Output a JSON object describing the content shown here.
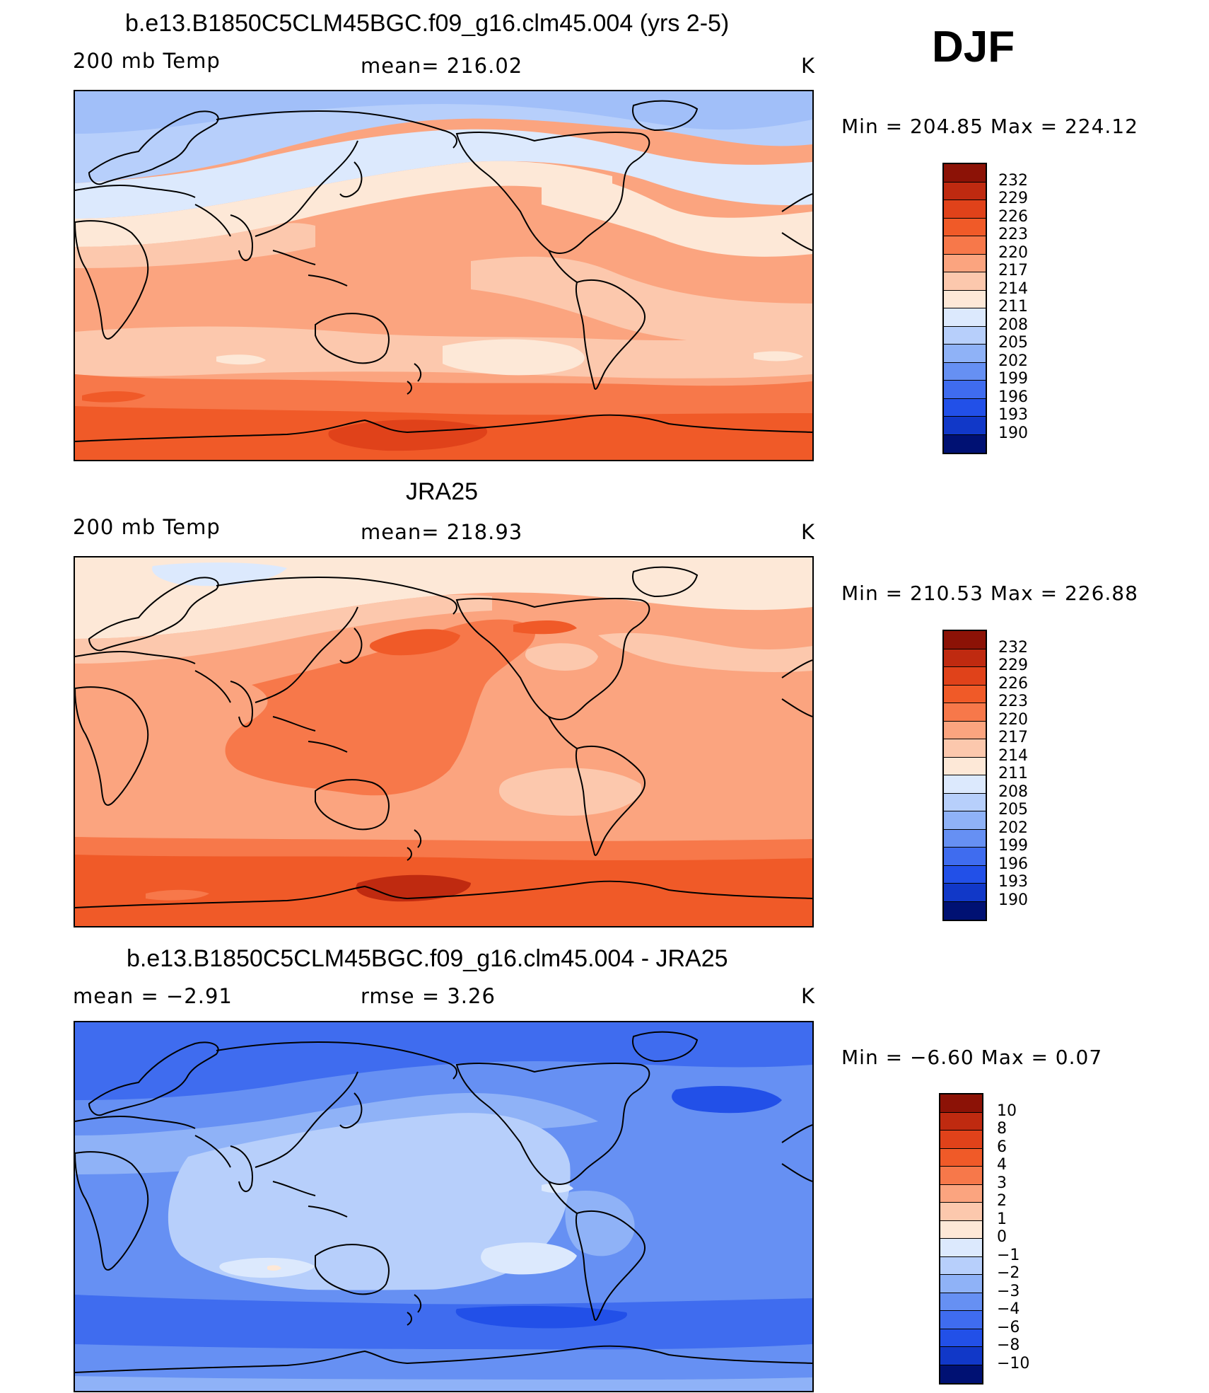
{
  "season": "DJF",
  "colors": {
    "warm": [
      "#fde8d7",
      "#fcc8ad",
      "#fba47f",
      "#f7784a",
      "#f05a28",
      "#e0421a",
      "#bf2a10",
      "#8c1206"
    ],
    "cool": [
      "#dce9fd",
      "#b7cffb",
      "#8fb2f7",
      "#6690f3",
      "#3f6cef",
      "#2250e8",
      "#1138c8",
      "#06209a",
      "#001173"
    ],
    "coast": "#000000"
  },
  "panels": [
    {
      "title": "b.e13.B1850C5CLM45BGC.f09_g16.clm45.004 (yrs 2-5)",
      "left_label": "200 mb Temp",
      "center_label": "mean= 216.02",
      "units": "K",
      "minmax": "Min = 204.85 Max = 224.12",
      "colorbar_labels": [
        "232",
        "229",
        "226",
        "223",
        "220",
        "217",
        "214",
        "211",
        "208",
        "205",
        "202",
        "199",
        "196",
        "193",
        "190"
      ],
      "colorbar_colors": [
        "#8c1206",
        "#bf2a10",
        "#e0421a",
        "#f05a28",
        "#f7784a",
        "#fba47f",
        "#fcc8ad",
        "#fde8d7",
        "#dce9fd",
        "#b7cffb",
        "#8fb2f7",
        "#6690f3",
        "#3f6cef",
        "#2250e8",
        "#1138c8",
        "#001173"
      ]
    },
    {
      "title": "JRA25",
      "left_label": "200 mb Temp",
      "center_label": "mean= 218.93",
      "units": "K",
      "minmax": "Min = 210.53 Max = 226.88",
      "colorbar_labels": [
        "232",
        "229",
        "226",
        "223",
        "220",
        "217",
        "214",
        "211",
        "208",
        "205",
        "202",
        "199",
        "196",
        "193",
        "190"
      ],
      "colorbar_colors": [
        "#8c1206",
        "#bf2a10",
        "#e0421a",
        "#f05a28",
        "#f7784a",
        "#fba47f",
        "#fcc8ad",
        "#fde8d7",
        "#dce9fd",
        "#b7cffb",
        "#8fb2f7",
        "#6690f3",
        "#3f6cef",
        "#2250e8",
        "#1138c8",
        "#001173"
      ]
    },
    {
      "title": "b.e13.B1850C5CLM45BGC.f09_g16.clm45.004 - JRA25",
      "left_label": "mean =   −2.91",
      "center_label": "rmse =    3.26",
      "units": "K",
      "minmax": "Min =  −6.60 Max =    0.07",
      "colorbar_labels": [
        "10",
        "8",
        "6",
        "4",
        "3",
        "2",
        "1",
        "0",
        "−1",
        "−2",
        "−3",
        "−4",
        "−6",
        "−8",
        "−10"
      ],
      "colorbar_colors": [
        "#8c1206",
        "#bf2a10",
        "#e0421a",
        "#f05a28",
        "#f7784a",
        "#fba47f",
        "#fcc8ad",
        "#fde8d7",
        "#dce9fd",
        "#b7cffb",
        "#8fb2f7",
        "#6690f3",
        "#3f6cef",
        "#2250e8",
        "#1138c8",
        "#001173"
      ]
    }
  ]
}
